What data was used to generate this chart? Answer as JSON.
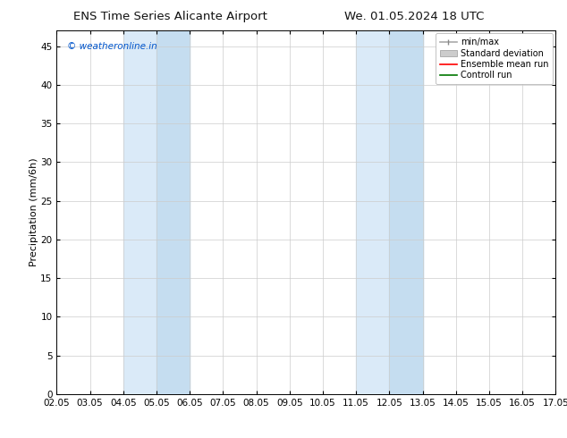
{
  "title_left": "ENS Time Series Alicante Airport",
  "title_right": "We. 01.05.2024 18 UTC",
  "ylabel": "Precipitation (mm/6h)",
  "watermark": "© weatheronline.in",
  "watermark_color": "#0055cc",
  "ylim": [
    0,
    47
  ],
  "yticks": [
    0,
    5,
    10,
    15,
    20,
    25,
    30,
    35,
    40,
    45
  ],
  "xtick_labels": [
    "02.05",
    "03.05",
    "04.05",
    "05.05",
    "06.05",
    "07.05",
    "08.05",
    "09.05",
    "10.05",
    "11.05",
    "12.05",
    "13.05",
    "14.05",
    "15.05",
    "16.05",
    "17.05"
  ],
  "num_xticks": 16,
  "shaded_bands": [
    {
      "xmin": 2,
      "xmax": 4,
      "color": "#daeaf8"
    },
    {
      "xmin": 9,
      "xmax": 11,
      "color": "#daeaf8"
    }
  ],
  "shaded_bands2": [
    {
      "xmin": 3,
      "xmax": 4,
      "color": "#c5ddf0"
    },
    {
      "xmin": 10,
      "xmax": 11,
      "color": "#c5ddf0"
    }
  ],
  "bg_color": "#ffffff",
  "plot_bg_color": "#ffffff",
  "grid_color": "#cccccc",
  "legend_labels": [
    "min/max",
    "Standard deviation",
    "Ensemble mean run",
    "Controll run"
  ],
  "title_fontsize": 9.5,
  "tick_fontsize": 7.5,
  "ylabel_fontsize": 8,
  "watermark_fontsize": 7.5,
  "legend_fontsize": 7
}
